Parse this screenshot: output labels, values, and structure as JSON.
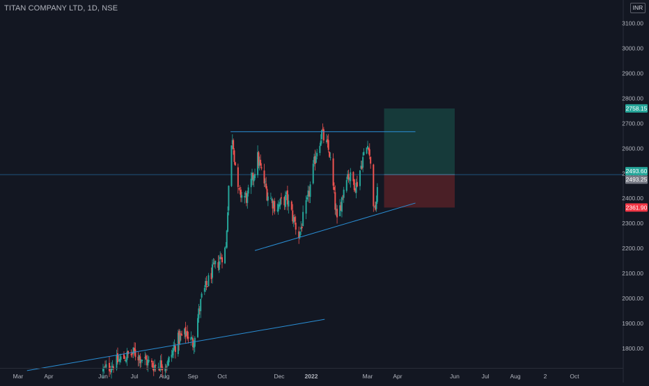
{
  "header": {
    "symbol_title": "TITAN COMPANY LTD, 1D, NSE",
    "currency": "INR"
  },
  "colors": {
    "background": "#131722",
    "grid": "#1e222d",
    "axis_text": "#b2b5be",
    "up_candle": "#26a69a",
    "down_candle": "#ef5350",
    "trendline": "#2a8fd6",
    "profit_zone": "#163a3a",
    "loss_zone": "#4a1f26",
    "target_label_bg": "#26a69a",
    "stop_label_bg": "#f23645",
    "current_label_bg": "#26a69a",
    "last_label_bg": "#787b86"
  },
  "chart_data": {
    "type": "candlestick",
    "title": "TITAN COMPANY LTD, 1D, NSE",
    "xlabel": "",
    "ylabel": "",
    "currency": "INR",
    "ylim": [
      1710,
      3180
    ],
    "y_ticks": [
      1800,
      1900,
      2000,
      2100,
      2200,
      2300,
      2400,
      2500,
      2600,
      2700,
      2800,
      2900,
      3000,
      3100
    ],
    "x_ticks": [
      "Mar",
      "Apr",
      "Jun",
      "Jul",
      "Aug",
      "Sep",
      "Oct",
      "Dec",
      "2022",
      "Mar",
      "Apr",
      "Jun",
      "Jul",
      "Aug",
      "2",
      "Oct"
    ],
    "grid": false,
    "approx_close_path": [
      {
        "date": "2021-06-01",
        "close": 1710
      },
      {
        "date": "2021-06-20",
        "close": 1760
      },
      {
        "date": "2021-07-01",
        "close": 1780
      },
      {
        "date": "2021-07-20",
        "close": 1730
      },
      {
        "date": "2021-08-05",
        "close": 1740
      },
      {
        "date": "2021-08-15",
        "close": 1830
      },
      {
        "date": "2021-08-25",
        "close": 1860
      },
      {
        "date": "2021-09-01",
        "close": 1820
      },
      {
        "date": "2021-09-10",
        "close": 2000
      },
      {
        "date": "2021-09-20",
        "close": 2100
      },
      {
        "date": "2021-09-28",
        "close": 2150
      },
      {
        "date": "2021-10-05",
        "close": 2200
      },
      {
        "date": "2021-10-08",
        "close": 2450
      },
      {
        "date": "2021-10-12",
        "close": 2650
      },
      {
        "date": "2021-10-18",
        "close": 2420
      },
      {
        "date": "2021-10-28",
        "close": 2400
      },
      {
        "date": "2021-11-08",
        "close": 2560
      },
      {
        "date": "2021-11-18",
        "close": 2420
      },
      {
        "date": "2021-11-28",
        "close": 2360
      },
      {
        "date": "2021-12-08",
        "close": 2400
      },
      {
        "date": "2021-12-20",
        "close": 2250
      },
      {
        "date": "2021-12-28",
        "close": 2380
      },
      {
        "date": "2022-01-06",
        "close": 2580
      },
      {
        "date": "2022-01-12",
        "close": 2660
      },
      {
        "date": "2022-01-20",
        "close": 2580
      },
      {
        "date": "2022-01-28",
        "close": 2300
      },
      {
        "date": "2022-02-07",
        "close": 2500
      },
      {
        "date": "2022-02-17",
        "close": 2450
      },
      {
        "date": "2022-02-24",
        "close": 2560
      },
      {
        "date": "2022-03-02",
        "close": 2620
      },
      {
        "date": "2022-03-08",
        "close": 2340
      },
      {
        "date": "2022-03-14",
        "close": 2493.25
      }
    ],
    "trendlines": [
      {
        "name": "resistance",
        "from": {
          "date": "2021-10-10",
          "price": 2665
        },
        "to": {
          "date": "2022-04-20",
          "price": 2665
        }
      },
      {
        "name": "rising-support",
        "from": {
          "date": "2021-11-05",
          "price": 2190
        },
        "to": {
          "date": "2022-04-20",
          "price": 2380
        }
      },
      {
        "name": "long-term-support",
        "from": {
          "date": "2021-03-10",
          "price": 1710
        },
        "to": {
          "date": "2022-01-15",
          "price": 1915
        }
      }
    ],
    "position": {
      "type": "long",
      "start_date": "2022-03-18",
      "end_date": "2022-06-01",
      "entry": 2493.6,
      "target": 2758.15,
      "stop": 2361.9
    },
    "price_labels": {
      "target": "2758.15",
      "current": "2493.60",
      "last": "2493.25",
      "stop": "2361.90"
    },
    "current_price": 2493.6,
    "last_price": 2493.25
  }
}
